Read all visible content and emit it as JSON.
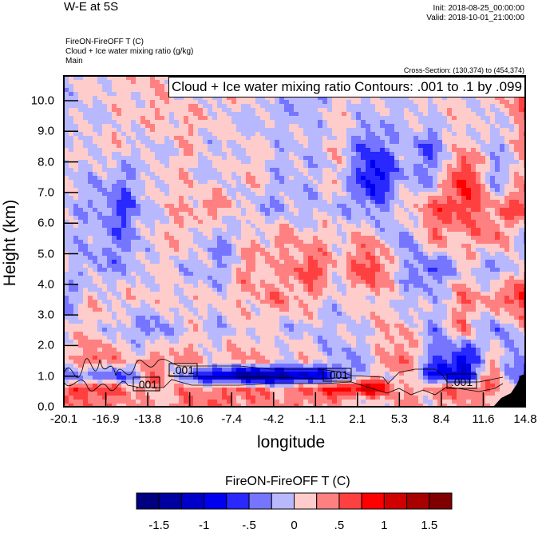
{
  "header": {
    "title": "W-E at 5S",
    "init": "Init: 2018-08-25_00:00:00",
    "valid": "Valid: 2018-10-01_21:00:00",
    "subtitle_lines": [
      "FireON-FireOFF T   (C)",
      "Cloud + Ice water mixing ratio   (g/kg)",
      "Main"
    ],
    "cross_section": "Cross-Section: (130,374) to (454,374)"
  },
  "chart_data": {
    "type": "heatmap",
    "title": "W-E at 5S",
    "xlabel": "longitude",
    "ylabel": "Height (km)",
    "xlim": [
      -20.1,
      14.8
    ],
    "ylim": [
      0,
      10.8
    ],
    "xticks": [
      "-20.1",
      "-16.9",
      "-13.8",
      "-10.6",
      "-7.4",
      "-4.2",
      "-1.1",
      "2.1",
      "5.3",
      "8.4",
      "11.6",
      "14.8"
    ],
    "yticks": [
      "0.0",
      "1.0",
      "2.0",
      "3.0",
      "4.0",
      "5.0",
      "6.0",
      "7.0",
      "8.0",
      "9.0",
      "10.0"
    ],
    "field": "FireON-FireOFF T (C)",
    "grid_heights_km": [
      10.5,
      9.5,
      8.5,
      7.5,
      6.5,
      5.5,
      4.5,
      3.5,
      2.5,
      1.5,
      1.0,
      0.6,
      0.2
    ],
    "grid_values": [
      [
        -0.1,
        0.1,
        0.1,
        0.2,
        -0.1,
        0.1,
        0.2,
        -0.1,
        -0.4,
        0.1,
        -0.1,
        0.1,
        -0.1,
        0.1,
        0.2,
        0.6
      ],
      [
        0.0,
        -0.1,
        0.1,
        0.2,
        0.2,
        0.1,
        -0.1,
        -0.1,
        -0.1,
        0.1,
        -0.1,
        -0.1,
        0.1,
        0.1,
        -0.1,
        0.5
      ],
      [
        -0.1,
        0.1,
        0.1,
        -0.1,
        0.2,
        -0.1,
        0.1,
        -0.1,
        -0.1,
        0.1,
        -0.6,
        -0.1,
        -0.5,
        0.3,
        -0.2,
        0.3
      ],
      [
        -0.1,
        -0.1,
        -0.3,
        0.1,
        0.1,
        -0.1,
        0.2,
        -0.1,
        -0.1,
        0.1,
        -1.0,
        -0.2,
        -0.3,
        0.9,
        -0.3,
        0.2
      ],
      [
        -0.1,
        -0.2,
        -0.6,
        0.1,
        0.2,
        0.4,
        -0.1,
        -0.2,
        -0.1,
        -0.1,
        -0.4,
        0.1,
        0.5,
        0.7,
        0.3,
        0.7
      ],
      [
        -0.1,
        -0.1,
        -0.4,
        0.1,
        0.2,
        -0.3,
        0.1,
        0.3,
        0.2,
        0.1,
        0.3,
        -0.4,
        0.4,
        0.2,
        0.5,
        -0.3
      ],
      [
        0.1,
        -0.3,
        -0.2,
        0.1,
        -0.1,
        -0.3,
        0.4,
        0.1,
        0.7,
        0.1,
        0.8,
        -0.1,
        -0.6,
        0.1,
        -0.4,
        0.2
      ],
      [
        -0.4,
        0.2,
        0.1,
        0.1,
        0.1,
        0.1,
        0.2,
        0.4,
        0.2,
        -0.1,
        0.2,
        -0.1,
        -0.1,
        0.4,
        0.3,
        1.0
      ],
      [
        0.1,
        0.1,
        -0.2,
        -0.4,
        0.1,
        -0.2,
        0.1,
        -0.1,
        -0.1,
        -0.1,
        0.1,
        0.3,
        -0.3,
        0.4,
        -0.5,
        0.2
      ],
      [
        0.1,
        0.6,
        0.2,
        0.4,
        0.3,
        0.2,
        0.4,
        0.1,
        0.2,
        -0.3,
        -0.1,
        0.6,
        -0.4,
        -1.0,
        0.3,
        -0.6
      ],
      [
        -0.6,
        -0.5,
        -0.6,
        0.5,
        -0.4,
        -1.2,
        -1.5,
        -1.5,
        -1.2,
        -0.6,
        0.1,
        0.2,
        -0.8,
        -1.0,
        0.5,
        -0.8
      ],
      [
        0.6,
        0.8,
        0.4,
        0.2,
        0.3,
        0.4,
        0.5,
        0.3,
        0.5,
        1.0,
        1.1,
        0.3,
        0.3,
        0.6,
        0.4,
        -0.3
      ],
      [
        0.3,
        0.5,
        0.3,
        0.2,
        0.4,
        0.5,
        0.4,
        0.3,
        0.4,
        0.2,
        0.1,
        0.2,
        0.2,
        0.3,
        0.2,
        0.2
      ]
    ],
    "levels": [
      -1.5,
      -1.25,
      -1.0,
      -0.75,
      -0.5,
      -0.25,
      0,
      0.25,
      0.5,
      0.75,
      1.0,
      1.25,
      1.5
    ],
    "colors": [
      "#000080",
      "#0000a0",
      "#0000c8",
      "#0000f0",
      "#2828ff",
      "#7575ff",
      "#b8b8ff",
      "#ffcccc",
      "#ff8080",
      "#ff4040",
      "#ff0000",
      "#d00000",
      "#a80000",
      "#800000"
    ],
    "contour_legend": "Cloud + Ice water mixing ratio Contours: .001 to .1 by .099",
    "contour_labels": [
      ".001",
      ".001",
      ".001",
      ".001"
    ],
    "colorbar": {
      "title": "FireON-FireOFF T  (C)",
      "labels": [
        "-1.5",
        "-1",
        "-.5",
        "0",
        ".5",
        "1",
        "1.5"
      ]
    }
  }
}
